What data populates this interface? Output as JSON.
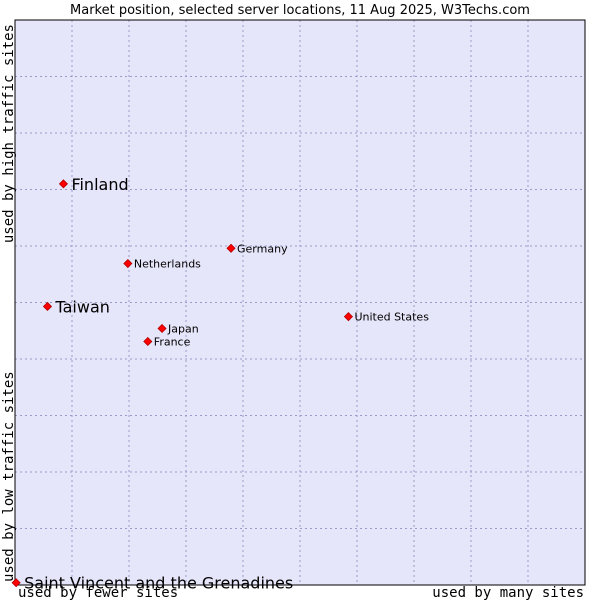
{
  "chart_data": {
    "type": "scatter",
    "title": "Market position, selected server locations, 11 Aug 2025, W3Techs.com",
    "xlabel_left": "used by fewer sites",
    "xlabel_right": "used by many sites",
    "ylabel_bottom": "used by low traffic sites",
    "ylabel_top": "used by high traffic sites",
    "xlim": [
      0,
      100
    ],
    "ylim": [
      0,
      100
    ],
    "grid": true,
    "colors": {
      "plot_bg": "#e6e6fa",
      "grid": "#9a9acb",
      "marker": "#ff0000",
      "marker_edge": "#b00000",
      "border": "#000000"
    },
    "points": [
      {
        "name": "Saint Vincent and the Grenadines",
        "x": 0.2,
        "y": 0.4,
        "emphasis": true
      },
      {
        "name": "Finland",
        "x": 8.5,
        "y": 71.0,
        "emphasis": true
      },
      {
        "name": "Taiwan",
        "x": 5.7,
        "y": 49.3,
        "emphasis": true
      },
      {
        "name": "Germany",
        "x": 37.9,
        "y": 59.6,
        "emphasis": false
      },
      {
        "name": "Netherlands",
        "x": 19.8,
        "y": 56.9,
        "emphasis": false
      },
      {
        "name": "Japan",
        "x": 25.8,
        "y": 45.4,
        "emphasis": false
      },
      {
        "name": "France",
        "x": 23.3,
        "y": 43.1,
        "emphasis": false
      },
      {
        "name": "United States",
        "x": 58.5,
        "y": 47.5,
        "emphasis": false
      }
    ]
  }
}
